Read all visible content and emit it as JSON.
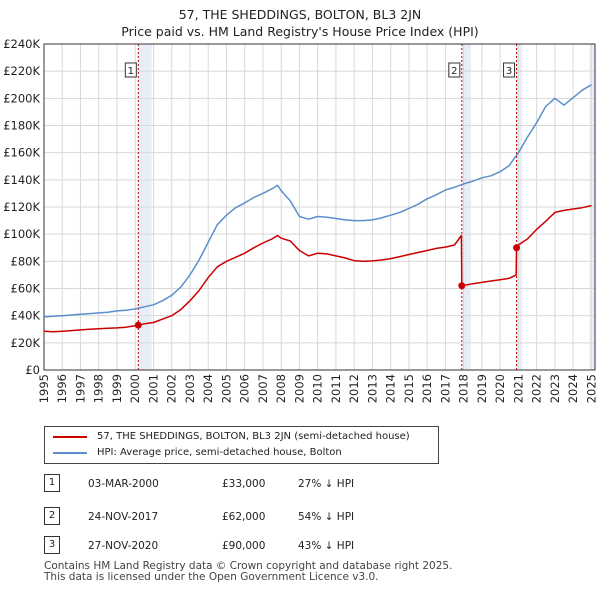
{
  "chart_data": {
    "type": "line",
    "title": "57, THE SHEDDINGS, BOLTON, BL3 2JN",
    "subtitle": "Price paid vs. HM Land Registry's House Price Index (HPI)",
    "xlabel": "",
    "ylabel": "",
    "xlim": [
      1995,
      2025.2
    ],
    "ylim": [
      0,
      240000
    ],
    "x_ticks": [
      1995,
      1996,
      1997,
      1998,
      1999,
      2000,
      2001,
      2002,
      2003,
      2004,
      2005,
      2006,
      2007,
      2008,
      2009,
      2010,
      2011,
      2012,
      2013,
      2014,
      2015,
      2016,
      2017,
      2018,
      2019,
      2020,
      2021,
      2022,
      2023,
      2024,
      2025
    ],
    "y_ticks": [
      0,
      20000,
      40000,
      60000,
      80000,
      100000,
      120000,
      140000,
      160000,
      180000,
      200000,
      220000,
      240000
    ],
    "y_tick_labels": [
      "£0",
      "£20K",
      "£40K",
      "£60K",
      "£80K",
      "£100K",
      "£120K",
      "£140K",
      "£160K",
      "£180K",
      "£200K",
      "£220K",
      "£240K"
    ],
    "grid": true,
    "series": [
      {
        "name": "57, THE SHEDDINGS, BOLTON, BL3 2JN (semi-detached house)",
        "color": "#cc0000",
        "x": [
          1995.0,
          1995.5,
          1996.0,
          1996.5,
          1997.0,
          1997.5,
          1998.0,
          1998.5,
          1999.0,
          1999.5,
          2000.17,
          2000.5,
          2001.0,
          2001.5,
          2002.0,
          2002.5,
          2003.0,
          2003.5,
          2004.0,
          2004.5,
          2005.0,
          2005.5,
          2006.0,
          2006.5,
          2007.0,
          2007.5,
          2007.8,
          2008.0,
          2008.5,
          2009.0,
          2009.5,
          2010.0,
          2010.5,
          2011.0,
          2011.5,
          2012.0,
          2012.5,
          2013.0,
          2013.5,
          2014.0,
          2014.5,
          2015.0,
          2015.5,
          2016.0,
          2016.5,
          2017.0,
          2017.5,
          2017.88,
          2017.9,
          2018.5,
          2019.0,
          2019.5,
          2020.0,
          2020.5,
          2020.88,
          2020.9,
          2021.0,
          2021.5,
          2022.0,
          2022.5,
          2023.0,
          2023.5,
          2024.0,
          2024.5,
          2025.0
        ],
        "values": [
          28500,
          28200,
          28500,
          29000,
          29500,
          30000,
          30300,
          30800,
          31000,
          31500,
          33000,
          34000,
          35000,
          37500,
          40000,
          44500,
          51000,
          58500,
          68000,
          76000,
          80000,
          83000,
          86000,
          90000,
          93500,
          96500,
          99000,
          97000,
          95000,
          88000,
          84000,
          86000,
          85500,
          84000,
          82500,
          80500,
          80000,
          80300,
          81000,
          82000,
          83500,
          85000,
          86500,
          88000,
          89500,
          90500,
          92000,
          99000,
          62000,
          63500,
          64500,
          65500,
          66500,
          67500,
          70000,
          90000,
          92000,
          96500,
          103500,
          109500,
          116000,
          117500,
          118500,
          119500,
          121000
        ]
      },
      {
        "name": "HPI: Average price, semi-detached house, Bolton",
        "color": "#5b8fcc",
        "x": [
          1995.0,
          1995.5,
          1996.0,
          1996.5,
          1997.0,
          1997.5,
          1998.0,
          1998.5,
          1999.0,
          1999.5,
          2000.0,
          2000.5,
          2001.0,
          2001.5,
          2002.0,
          2002.5,
          2003.0,
          2003.5,
          2004.0,
          2004.5,
          2005.0,
          2005.5,
          2006.0,
          2006.5,
          2007.0,
          2007.5,
          2007.8,
          2008.0,
          2008.5,
          2009.0,
          2009.5,
          2010.0,
          2010.5,
          2011.0,
          2011.5,
          2012.0,
          2012.5,
          2013.0,
          2013.5,
          2014.0,
          2014.5,
          2015.0,
          2015.5,
          2016.0,
          2016.5,
          2017.0,
          2017.5,
          2018.0,
          2018.5,
          2019.0,
          2019.5,
          2020.0,
          2020.5,
          2021.0,
          2021.5,
          2022.0,
          2022.5,
          2023.0,
          2023.5,
          2024.0,
          2024.5,
          2025.0
        ],
        "values": [
          39000,
          39500,
          40000,
          40500,
          41000,
          41500,
          42000,
          42500,
          43500,
          44000,
          45000,
          46500,
          48000,
          51000,
          55000,
          61000,
          70000,
          81000,
          94000,
          107000,
          114000,
          119500,
          123000,
          127000,
          130000,
          133500,
          136000,
          132000,
          124500,
          113000,
          111000,
          113000,
          112500,
          111500,
          110500,
          110000,
          110000,
          110500,
          112000,
          114000,
          116000,
          119000,
          122000,
          126000,
          129000,
          132500,
          134500,
          137000,
          139000,
          141500,
          143000,
          146000,
          150500,
          160000,
          171500,
          182000,
          194000,
          200000,
          195000,
          200500,
          206000,
          210000
        ]
      }
    ],
    "annotations": [
      {
        "label": "1",
        "x": 2000.17,
        "value": 33000
      },
      {
        "label": "2",
        "x": 2017.9,
        "value": 62000
      },
      {
        "label": "3",
        "x": 2020.9,
        "value": 90000
      }
    ]
  },
  "legend": {
    "property_label": "57, THE SHEDDINGS, BOLTON, BL3 2JN (semi-detached house)",
    "hpi_label": "HPI: Average price, semi-detached house, Bolton",
    "property_color": "#cc0000",
    "hpi_color": "#5b8fcc"
  },
  "sales": [
    {
      "num": "1",
      "date": "03-MAR-2000",
      "price": "£33,000",
      "hpi": "27% ↓ HPI"
    },
    {
      "num": "2",
      "date": "24-NOV-2017",
      "price": "£62,000",
      "hpi": "54% ↓ HPI"
    },
    {
      "num": "3",
      "date": "27-NOV-2020",
      "price": "£90,000",
      "hpi": "43% ↓ HPI"
    }
  ],
  "footer": {
    "line1": "Contains HM Land Registry data © Crown copyright and database right 2025.",
    "line2": "This data is licensed under the Open Government Licence v3.0."
  }
}
